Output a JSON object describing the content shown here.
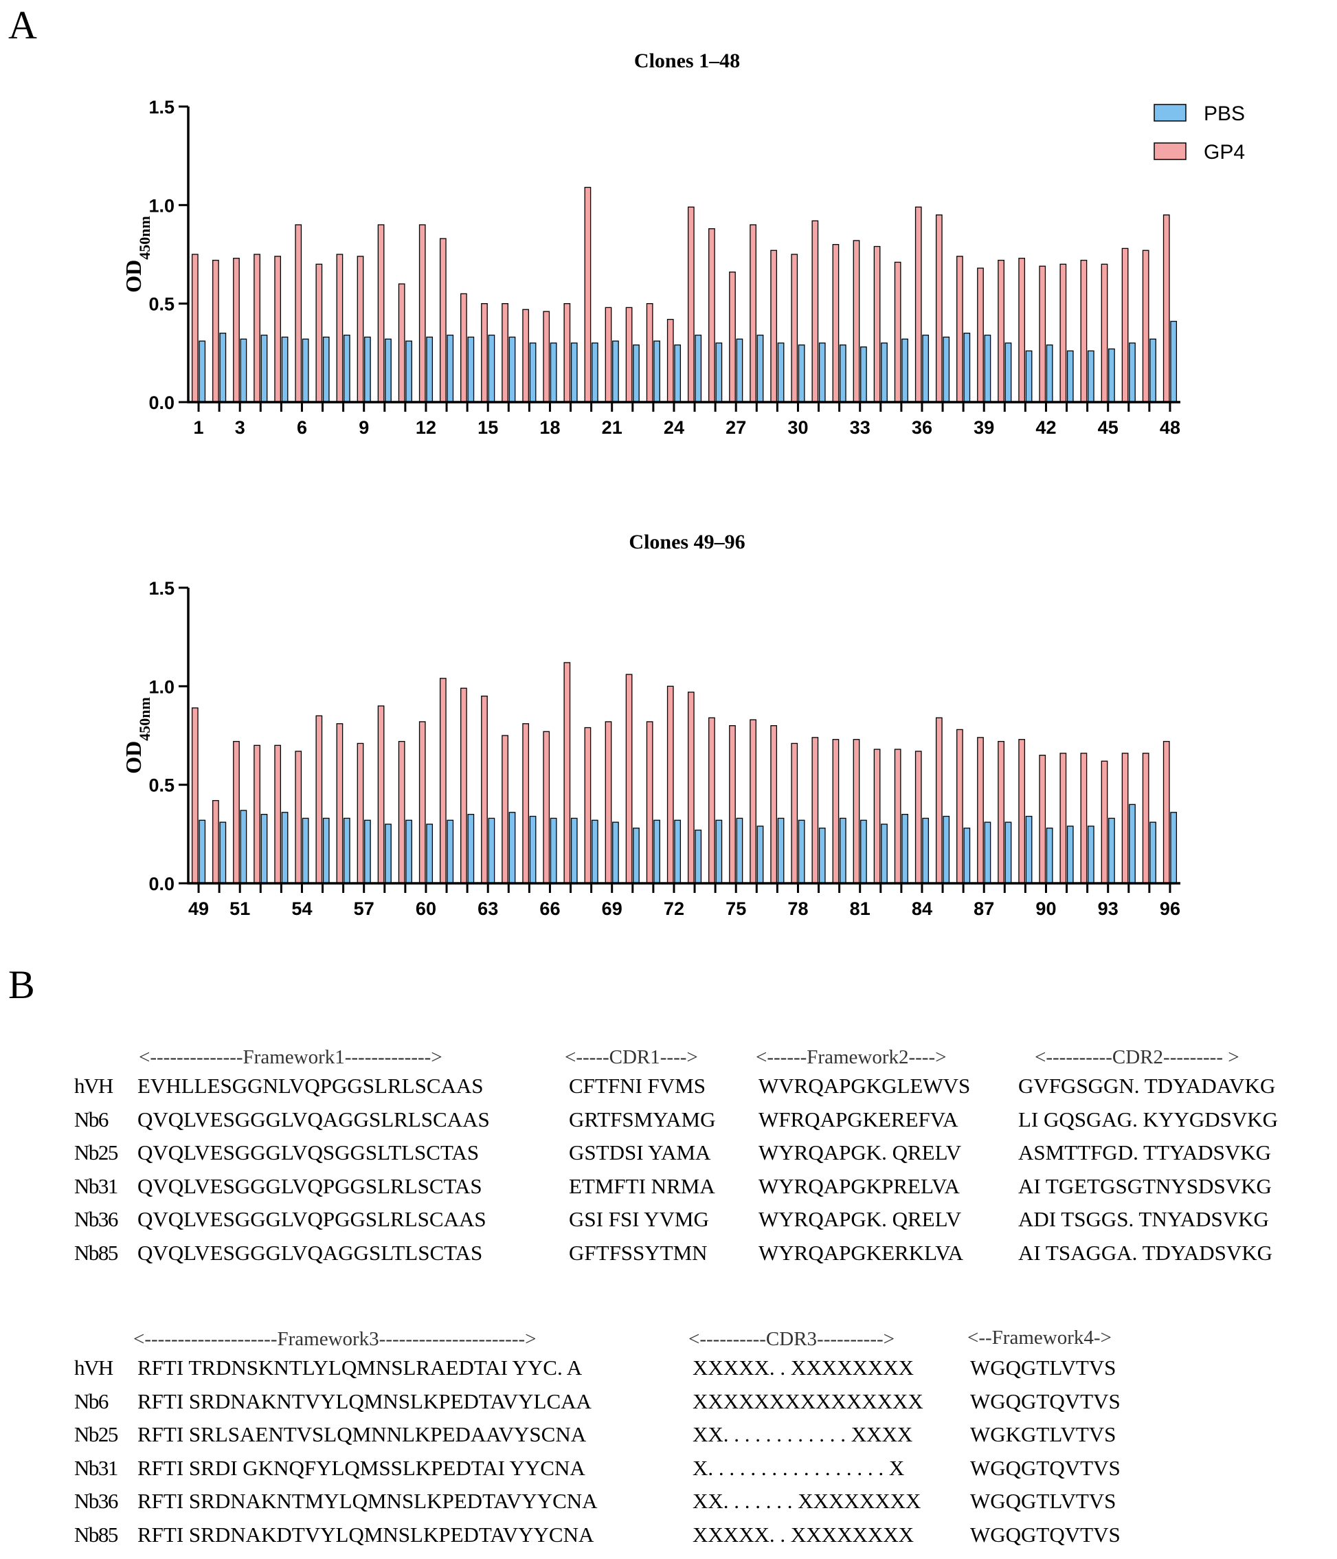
{
  "panels": {
    "a": "A",
    "b": "B"
  },
  "legend": {
    "pbs": "PBS",
    "gp4": "GP4"
  },
  "colors": {
    "pbs_fill": "#7ec0ee",
    "gp4_fill": "#f4a6a6",
    "stroke": "#000000"
  },
  "chart_data": [
    {
      "type": "bar",
      "title": "Clones 1–48",
      "ylabel": "OD450nm",
      "ylim": [
        0,
        1.5
      ],
      "yticks": [
        "0.0",
        "0.5",
        "1.0",
        "1.5"
      ],
      "xticks": [
        "1",
        "3",
        "6",
        "9",
        "12",
        "15",
        "18",
        "21",
        "24",
        "27",
        "30",
        "33",
        "36",
        "39",
        "42",
        "45",
        "48"
      ],
      "categories": [
        1,
        2,
        3,
        4,
        5,
        6,
        7,
        8,
        9,
        10,
        11,
        12,
        13,
        14,
        15,
        16,
        17,
        18,
        19,
        20,
        21,
        22,
        23,
        24,
        25,
        26,
        27,
        28,
        29,
        30,
        31,
        32,
        33,
        34,
        35,
        36,
        37,
        38,
        39,
        40,
        41,
        42,
        43,
        44,
        45,
        46,
        47,
        48
      ],
      "series": [
        {
          "name": "PBS",
          "values": [
            0.31,
            0.35,
            0.32,
            0.34,
            0.33,
            0.32,
            0.33,
            0.34,
            0.33,
            0.32,
            0.31,
            0.33,
            0.34,
            0.33,
            0.34,
            0.33,
            0.3,
            0.3,
            0.3,
            0.3,
            0.31,
            0.29,
            0.31,
            0.29,
            0.34,
            0.3,
            0.32,
            0.34,
            0.3,
            0.29,
            0.3,
            0.29,
            0.28,
            0.3,
            0.32,
            0.34,
            0.33,
            0.35,
            0.34,
            0.3,
            0.26,
            0.29,
            0.26,
            0.26,
            0.27,
            0.3,
            0.32,
            0.41
          ]
        },
        {
          "name": "GP4",
          "values": [
            0.75,
            0.72,
            0.73,
            0.75,
            0.74,
            0.9,
            0.7,
            0.75,
            0.74,
            0.9,
            0.6,
            0.9,
            0.83,
            0.55,
            0.5,
            0.5,
            0.47,
            0.46,
            0.5,
            1.09,
            0.48,
            0.48,
            0.5,
            0.42,
            0.99,
            0.88,
            0.66,
            0.9,
            0.77,
            0.75,
            0.92,
            0.8,
            0.82,
            0.79,
            0.71,
            0.99,
            0.95,
            0.74,
            0.68,
            0.72,
            0.73,
            0.69,
            0.7,
            0.72,
            0.7,
            0.78,
            0.77,
            0.95
          ]
        }
      ]
    },
    {
      "type": "bar",
      "title": "Clones 49–96",
      "ylabel": "OD450nm",
      "ylim": [
        0,
        1.5
      ],
      "yticks": [
        "0.0",
        "0.5",
        "1.0",
        "1.5"
      ],
      "xticks": [
        "49",
        "51",
        "54",
        "57",
        "60",
        "63",
        "66",
        "69",
        "72",
        "75",
        "78",
        "81",
        "84",
        "87",
        "90",
        "93",
        "96"
      ],
      "categories": [
        49,
        50,
        51,
        52,
        53,
        54,
        55,
        56,
        57,
        58,
        59,
        60,
        61,
        62,
        63,
        64,
        65,
        66,
        67,
        68,
        69,
        70,
        71,
        72,
        73,
        74,
        75,
        76,
        77,
        78,
        79,
        80,
        81,
        82,
        83,
        84,
        85,
        86,
        87,
        88,
        89,
        90,
        91,
        92,
        93,
        94,
        95,
        96
      ],
      "series": [
        {
          "name": "PBS",
          "values": [
            0.32,
            0.31,
            0.37,
            0.35,
            0.36,
            0.33,
            0.33,
            0.33,
            0.32,
            0.3,
            0.32,
            0.3,
            0.32,
            0.35,
            0.33,
            0.36,
            0.34,
            0.33,
            0.33,
            0.32,
            0.31,
            0.28,
            0.32,
            0.32,
            0.27,
            0.32,
            0.33,
            0.29,
            0.33,
            0.32,
            0.28,
            0.33,
            0.32,
            0.3,
            0.35,
            0.33,
            0.34,
            0.28,
            0.31,
            0.31,
            0.34,
            0.28,
            0.29,
            0.29,
            0.33,
            0.4,
            0.31,
            0.36
          ]
        },
        {
          "name": "GP4",
          "values": [
            0.89,
            0.42,
            0.72,
            0.7,
            0.7,
            0.67,
            0.85,
            0.81,
            0.71,
            0.9,
            0.72,
            0.82,
            1.04,
            0.99,
            0.95,
            0.75,
            0.81,
            0.77,
            1.12,
            0.79,
            0.82,
            1.06,
            0.82,
            1.0,
            0.97,
            0.84,
            0.8,
            0.83,
            0.8,
            0.71,
            0.74,
            0.73,
            0.73,
            0.68,
            0.68,
            0.67,
            0.84,
            0.78,
            0.74,
            0.72,
            0.73,
            0.65,
            0.66,
            0.66,
            0.62,
            0.66,
            0.66,
            0.72
          ]
        }
      ]
    }
  ],
  "alignment1": {
    "regions": {
      "fw1": "<--------------Framework1------------->",
      "cdr1": "<-----CDR1---->",
      "fw2": "<------Framework2---->",
      "cdr2": "<----------CDR2--------- >"
    },
    "rows": [
      {
        "name": "hVH",
        "fw1": "EVHLLESGGNLVQPGGSLRLSCAAS",
        "cdr1": "CFTFNI FVMS",
        "fw2": "WVRQAPGKGLEWVS",
        "cdr2": "GVFGSGGN. TDYADAVKG"
      },
      {
        "name": "Nb6",
        "fw1": "QVQLVESGGGLVQAGGSLRLSCAAS",
        "cdr1": "GRTFSMYAMG",
        "fw2": "WFRQAPGKEREFVA",
        "cdr2": "LI GQSGAG. KYYGDSVKG"
      },
      {
        "name": "Nb25",
        "fw1": "QVQLVESGGGLVQSGGSLTLSCTAS",
        "cdr1": "GSTDSI YAMA",
        "fw2": "WYRQAPGK. QRELV",
        "cdr2": "ASMTTFGD. TTYADSVKG"
      },
      {
        "name": "Nb31",
        "fw1": "QVQLVESGGGLVQPGGSLRLSCTAS",
        "cdr1": "ETMFTI NRMA",
        "fw2": "WYRQAPGKPRELVA",
        "cdr2": "AI TGETGSGTNYSDSVKG"
      },
      {
        "name": "Nb36",
        "fw1": "QVQLVESGGGLVQPGGSLRLSCAAS",
        "cdr1": "GSI FSI YVMG",
        "fw2": "WYRQAPGK. QRELV",
        "cdr2": "ADI TSGGS. TNYADSVKG"
      },
      {
        "name": "Nb85",
        "fw1": "QVQLVESGGGLVQAGGSLTLSCTAS",
        "cdr1": "GFTFSSYTMN",
        "fw2": "WYRQAPGKERKLVA",
        "cdr2": "AI TSAGGA. TDYADSVKG"
      }
    ]
  },
  "alignment2": {
    "regions": {
      "fw3": "<--------------------Framework3---------------------->",
      "cdr3": "<----------CDR3---------->",
      "fw4": "<--Framework4->"
    },
    "rows": [
      {
        "name": "hVH",
        "fw3": "RFTI TRDNSKNTLYLQMNSLRAEDTAI YYC. A",
        "cdr3": "XXXXX. . XXXXXXXX",
        "fw4": "WGQGTLVTVS"
      },
      {
        "name": "Nb6",
        "fw3": "RFTI SRDNAKNTVYLQMNSLKPEDTAVYLCAA",
        "cdr3": "XXXXXXXXXXXXXXX",
        "fw4": "WGQGTQVTVS"
      },
      {
        "name": "Nb25",
        "fw3": "RFTI SRLSAENTVSLQMNNLKPEDAAVYSCNA",
        "cdr3": "XX. . . . . . . . . . . . XXXX",
        "fw4": "WGKGTLVTVS"
      },
      {
        "name": "Nb31",
        "fw3": "RFTI SRDI GKNQFYLQMSSLKPEDTAI YYCNA",
        "cdr3": "X. . . . . . . . . . . . . . . . . X",
        "fw4": "WGQGTQVTVS"
      },
      {
        "name": "Nb36",
        "fw3": "RFTI SRDNAKNTMYLQMNSLKPEDTAVYYCNA",
        "cdr3": "XX. . . . . . . XXXXXXXX",
        "fw4": "WGQGTLVTVS"
      },
      {
        "name": "Nb85",
        "fw3": "RFTI SRDNAKDTVYLQMNSLKPEDTAVYYCNA",
        "cdr3": "XXXXX. . XXXXXXXX",
        "fw4": "WGQGTQVTVS"
      }
    ]
  }
}
